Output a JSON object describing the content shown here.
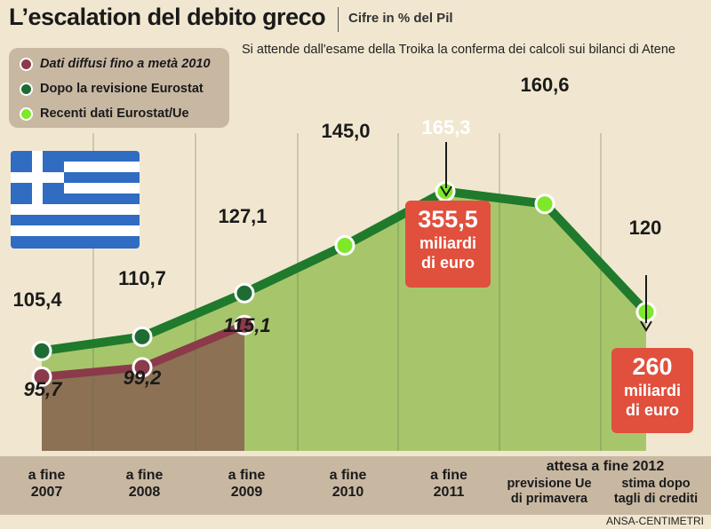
{
  "header": {
    "title": "L’escalation del debito greco",
    "subtitle": "Cifre in % del Pil",
    "note": "Si attende dall'esame della Troika la conferma dei calcoli sui bilanci di Atene"
  },
  "legend": [
    {
      "label": "Dati diffusi fino a metà 2010",
      "color": "#8b3a4a",
      "italic": true
    },
    {
      "label": "Dopo la revisione Eurostat",
      "color": "#1e6b33",
      "italic": false
    },
    {
      "label": "Recenti dati Eurostat/Ue",
      "color": "#7ee82a",
      "italic": false
    }
  ],
  "colors": {
    "background": "#f1e7d0",
    "area_green": "#a7c66c",
    "area_brown": "#8c7155",
    "line_green": "#1f7a2c",
    "line_maroon": "#8b3a4a",
    "callout_red": "#e0503d"
  },
  "chart_data": {
    "type": "line",
    "categories": [
      "a fine 2007",
      "a fine 2008",
      "a fine 2009",
      "a fine 2010",
      "a fine 2011",
      "previsione Ue di primavera",
      "stima dopo tagli di crediti"
    ],
    "group_label": "attesa a fine 2012",
    "series": [
      {
        "name": "Dati diffusi fino a metà 2010",
        "values": [
          95.7,
          99.2,
          115.1,
          null,
          null,
          null,
          null
        ],
        "labels": [
          "95,7",
          "99,2",
          "115,1"
        ]
      },
      {
        "name": "Dopo la revisione Eurostat",
        "values": [
          105.4,
          110.7,
          127.1,
          145.0,
          165.3,
          160.6,
          120
        ],
        "labels": [
          "105,4",
          "110,7",
          "127,1",
          "145,0",
          "165,3",
          "160,6",
          "120"
        ]
      }
    ],
    "callouts": [
      {
        "category": "a fine 2011",
        "value": "355,5",
        "unit_lines": [
          "miliardi",
          "di euro"
        ]
      },
      {
        "category": "stima dopo tagli di crediti",
        "value": "260",
        "unit_lines": [
          "miliardi",
          "di euro"
        ]
      }
    ]
  },
  "x_labels": [
    {
      "lines": [
        "a fine",
        "2007"
      ]
    },
    {
      "lines": [
        "a fine",
        "2008"
      ]
    },
    {
      "lines": [
        "a fine",
        "2009"
      ]
    },
    {
      "lines": [
        "a fine",
        "2010"
      ]
    },
    {
      "lines": [
        "a fine",
        "2011"
      ]
    },
    {
      "lines": [
        "previsione Ue",
        "di primavera"
      ]
    },
    {
      "lines": [
        "stima dopo",
        "tagli di crediti"
      ]
    }
  ],
  "credit": "ANSA-CENTIMETRI"
}
